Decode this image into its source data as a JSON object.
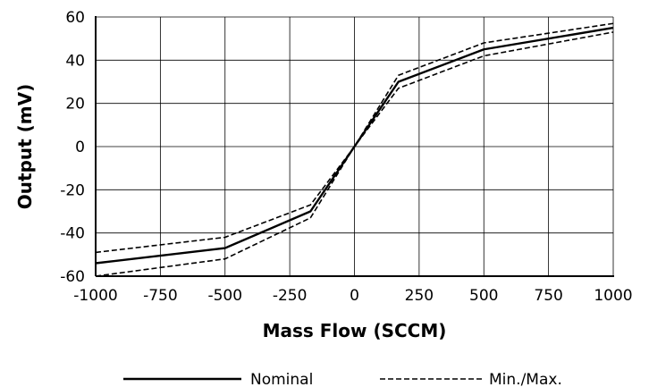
{
  "chart_data": {
    "type": "line",
    "title": "",
    "xlabel": "Mass Flow (SCCM)",
    "ylabel": "Output (mV)",
    "xlim": [
      -1000,
      1000
    ],
    "ylim": [
      -60,
      60
    ],
    "x_ticks": [
      -1000,
      -750,
      -500,
      -250,
      0,
      250,
      500,
      750,
      1000
    ],
    "y_ticks": [
      -60,
      -40,
      -20,
      0,
      20,
      40,
      60
    ],
    "x_tick_labels": [
      "-1000",
      "-750",
      "-500",
      "-250",
      "0",
      "250",
      "500",
      "750",
      "1000"
    ],
    "y_tick_labels": [
      "-60",
      "-40",
      "-20",
      "0",
      "20",
      "40",
      "60"
    ],
    "grid": true,
    "legend_position": "bottom",
    "series": [
      {
        "name": "Nominal",
        "style": "solid",
        "color": "#000000",
        "x": [
          -1000,
          -500,
          -170,
          0,
          170,
          500,
          1000
        ],
        "y": [
          -54,
          -47,
          -30,
          0,
          30,
          45,
          55
        ]
      },
      {
        "name": "Min./Max.",
        "style": "dashed",
        "color": "#000000",
        "x": [
          -1000,
          -500,
          -170,
          0,
          170,
          500,
          1000
        ],
        "y": [
          -49,
          -42,
          -27,
          0,
          33,
          48,
          57
        ]
      },
      {
        "name": "",
        "legend": false,
        "style": "dashed",
        "color": "#000000",
        "x": [
          -1000,
          -500,
          -170,
          0,
          170,
          500,
          1000
        ],
        "y": [
          -60,
          -52,
          -33,
          0,
          27,
          42,
          53
        ]
      }
    ]
  }
}
